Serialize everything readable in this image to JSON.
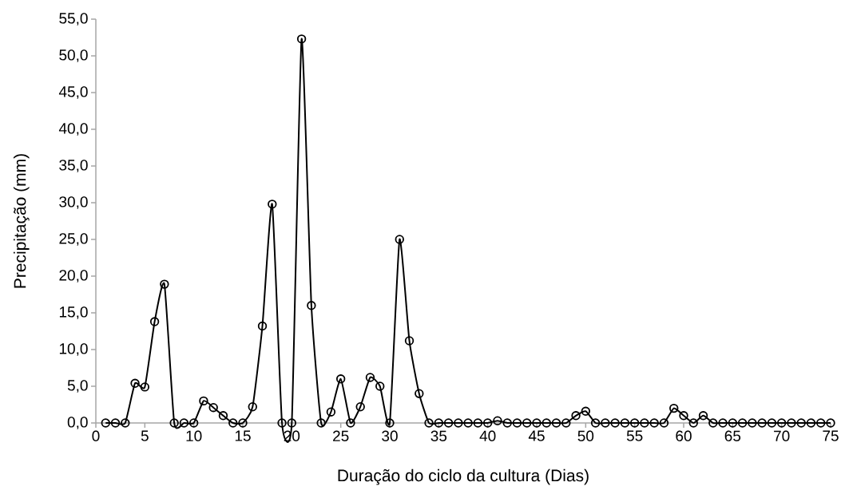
{
  "chart_data": {
    "type": "line",
    "xlabel": "Duração do ciclo da cultura (Dias)",
    "ylabel": "Precipitação (mm)",
    "x": [
      1,
      2,
      3,
      4,
      5,
      6,
      7,
      8,
      9,
      10,
      11,
      12,
      13,
      14,
      15,
      16,
      17,
      18,
      19,
      20,
      21,
      22,
      23,
      24,
      25,
      26,
      27,
      28,
      29,
      30,
      31,
      32,
      33,
      34,
      35,
      36,
      37,
      38,
      39,
      40,
      41,
      42,
      43,
      44,
      45,
      46,
      47,
      48,
      49,
      50,
      51,
      52,
      53,
      54,
      55,
      56,
      57,
      58,
      59,
      60,
      61,
      62,
      63,
      64,
      65,
      66,
      67,
      68,
      69,
      70,
      71,
      72,
      73,
      74,
      75
    ],
    "series": [
      {
        "color": "#000000",
        "values": [
          0,
          0,
          0,
          5.4,
          4.9,
          13.8,
          18.9,
          0,
          0,
          0,
          3.0,
          2.1,
          1.0,
          0,
          0,
          2.2,
          13.2,
          29.8,
          0,
          0,
          52.3,
          16.0,
          0,
          1.5,
          6.0,
          0,
          2.2,
          6.2,
          5.0,
          0,
          25.0,
          11.2,
          4.0,
          0,
          0,
          0,
          0,
          0,
          0,
          0,
          0.3,
          0,
          0,
          0,
          0,
          0,
          0,
          0,
          1.0,
          1.6,
          0,
          0,
          0,
          0,
          0,
          0,
          0,
          0,
          2.0,
          1.0,
          0,
          1.0,
          0,
          0,
          0,
          0,
          0,
          0,
          0,
          0,
          0,
          0,
          0,
          0,
          0
        ]
      }
    ],
    "xlim": [
      0,
      75
    ],
    "xticks": [
      0,
      5,
      10,
      15,
      20,
      25,
      30,
      35,
      40,
      45,
      50,
      55,
      60,
      65,
      70,
      75
    ],
    "ylim": [
      0,
      55
    ],
    "yticks": [
      {
        "value": 0,
        "label": "0,0"
      },
      {
        "value": 5,
        "label": "5,0"
      },
      {
        "value": 10,
        "label": "10,0"
      },
      {
        "value": 15,
        "label": "15,0"
      },
      {
        "value": 20,
        "label": "20,0"
      },
      {
        "value": 25,
        "label": "25,0"
      },
      {
        "value": 30,
        "label": "30,0"
      },
      {
        "value": 35,
        "label": "35,0"
      },
      {
        "value": 40,
        "label": "40,0"
      },
      {
        "value": 45,
        "label": "45,0"
      },
      {
        "value": 50,
        "label": "50,0"
      },
      {
        "value": 55,
        "label": "55,0"
      }
    ],
    "marker": "circle",
    "line_style": "solid",
    "grid": false
  }
}
